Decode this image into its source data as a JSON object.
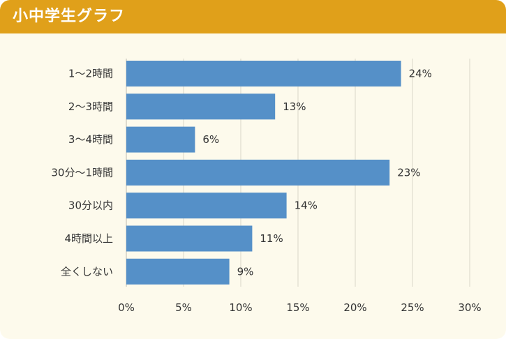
{
  "header": {
    "title": "小中学生グラフ"
  },
  "colors": {
    "header_bg": "#e0a01a",
    "panel_bg": "#fdfaec",
    "bar": "#5590c8",
    "grid": "#d9d6c8"
  },
  "chart_data": {
    "type": "bar",
    "orientation": "horizontal",
    "title": "小中学生グラフ",
    "categories": [
      "1〜2時間",
      "2〜3時間",
      "3〜4時間",
      "30分〜1時間",
      "30分以内",
      "4時間以上",
      "全くしない"
    ],
    "values": [
      24,
      13,
      6,
      23,
      14,
      11,
      9
    ],
    "value_labels": [
      "24%",
      "13%",
      "6%",
      "23%",
      "14%",
      "11%",
      "9%"
    ],
    "xlim": [
      0,
      30
    ],
    "xticks": [
      0,
      5,
      10,
      15,
      20,
      25,
      30
    ],
    "xtick_labels": [
      "0%",
      "5%",
      "10%",
      "15%",
      "20%",
      "25%",
      "30%"
    ],
    "grid": true,
    "xlabel": "",
    "ylabel": ""
  }
}
